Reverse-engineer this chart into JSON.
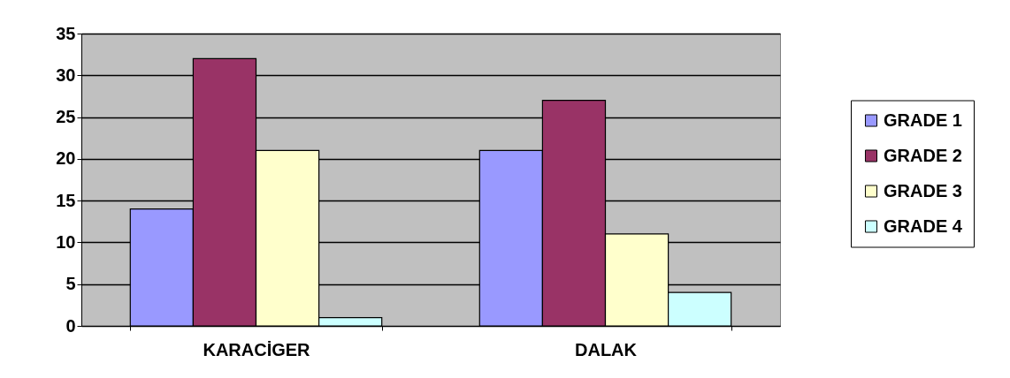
{
  "chart_data": {
    "type": "bar",
    "categories": [
      "KARACİGER",
      "DALAK"
    ],
    "series": [
      {
        "name": "GRADE 1",
        "color": "#9999ff",
        "values": [
          14,
          21
        ]
      },
      {
        "name": "GRADE 2",
        "color": "#993366",
        "values": [
          32,
          27
        ]
      },
      {
        "name": "GRADE 3",
        "color": "#ffffcc",
        "values": [
          21,
          11
        ]
      },
      {
        "name": "GRADE 4",
        "color": "#ccffff",
        "values": [
          1,
          4
        ]
      }
    ],
    "ylim": [
      0,
      35
    ],
    "yticks": [
      0,
      5,
      10,
      15,
      20,
      25,
      30,
      35
    ],
    "grid": "y",
    "legend": "right"
  }
}
